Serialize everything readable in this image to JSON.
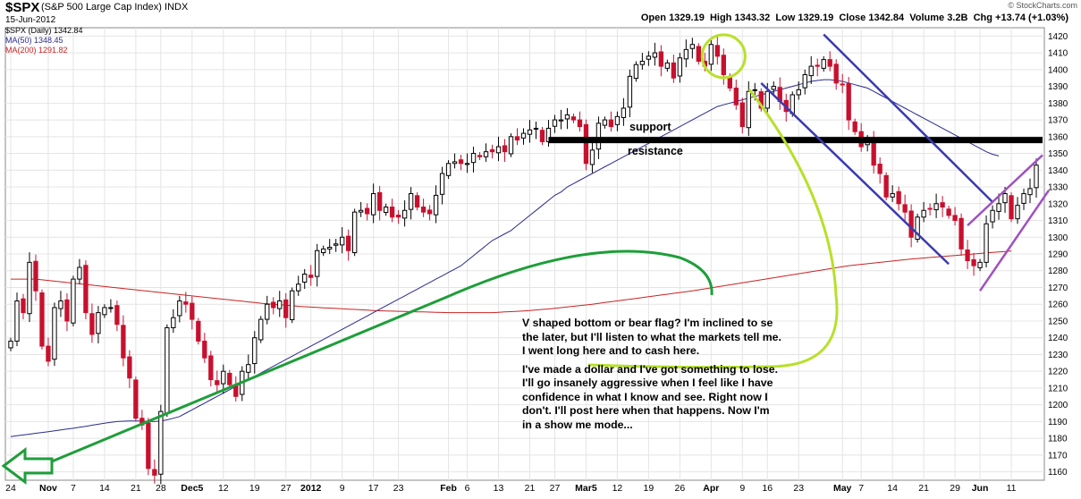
{
  "header": {
    "ticker": "$SPX",
    "name": "(S&P 500 Large Cap Index)",
    "exchange": "INDX",
    "date": "15-Jun-2012",
    "watermark": "© StockCharts.com",
    "ohlc": {
      "open_label": "Open",
      "open": "1329.19",
      "high_label": "High",
      "high": "1343.32",
      "low_label": "Low",
      "low": "1329.19",
      "close_label": "Close",
      "close": "1342.84",
      "volume_label": "Volume",
      "volume": "3.2B",
      "chg_label": "Chg",
      "chg": "+13.74 (+1.03%)"
    }
  },
  "legend": {
    "spx": "$SPX (Daily) 1342.84",
    "ma50": "MA(50) 1348.45",
    "ma200": "MA(200) 1291.82"
  },
  "annotations": {
    "support": "support",
    "resistance": "resistance",
    "text1": "V shaped bottom or bear flag? I'm inclined to se the later, but I'll listen to what the markets tell me. I went long here and to cash here.",
    "text2": "I've made a dollar and I've got something to lose.  I'll go insanely aggressive when I feel like I have confidence in what I know and see. Right now I don't. I'll post here when that happens. Now I'm in a show me mode..."
  },
  "chart_data": {
    "type": "candlestick",
    "ylim": [
      1155,
      1425
    ],
    "yticks": [
      1160,
      1170,
      1180,
      1190,
      1200,
      1210,
      1220,
      1230,
      1240,
      1250,
      1260,
      1270,
      1280,
      1290,
      1300,
      1310,
      1320,
      1330,
      1340,
      1350,
      1360,
      1370,
      1380,
      1390,
      1400,
      1410,
      1420
    ],
    "xticks": [
      {
        "label": "24",
        "i": 0
      },
      {
        "label": "Nov",
        "i": 6
      },
      {
        "label": "7",
        "i": 10
      },
      {
        "label": "14",
        "i": 15
      },
      {
        "label": "21",
        "i": 20
      },
      {
        "label": "28",
        "i": 24
      },
      {
        "label": "Dec5",
        "i": 29
      },
      {
        "label": "12",
        "i": 34
      },
      {
        "label": "19",
        "i": 39
      },
      {
        "label": "27",
        "i": 44
      },
      {
        "label": "2012",
        "i": 48
      },
      {
        "label": "9",
        "i": 53
      },
      {
        "label": "17",
        "i": 58
      },
      {
        "label": "23",
        "i": 62
      },
      {
        "label": "Feb",
        "i": 70
      },
      {
        "label": "6",
        "i": 73
      },
      {
        "label": "13",
        "i": 78
      },
      {
        "label": "21",
        "i": 83
      },
      {
        "label": "27",
        "i": 87
      },
      {
        "label": "Mar5",
        "i": 92
      },
      {
        "label": "12",
        "i": 97
      },
      {
        "label": "19",
        "i": 102
      },
      {
        "label": "26",
        "i": 107
      },
      {
        "label": "Apr",
        "i": 112
      },
      {
        "label": "9",
        "i": 117
      },
      {
        "label": "16",
        "i": 121
      },
      {
        "label": "23",
        "i": 126
      },
      {
        "label": "May",
        "i": 133
      },
      {
        "label": "7",
        "i": 136
      },
      {
        "label": "14",
        "i": 141
      },
      {
        "label": "21",
        "i": 146
      },
      {
        "label": "29",
        "i": 151
      },
      {
        "label": "Jun",
        "i": 155
      },
      {
        "label": "11",
        "i": 160
      }
    ],
    "closes": [
      1238,
      1262,
      1255,
      1285,
      1268,
      1235,
      1226,
      1258,
      1262,
      1250,
      1275,
      1282,
      1255,
      1242,
      1255,
      1258,
      1258,
      1248,
      1228,
      1216,
      1192,
      1188,
      1162,
      1158,
      1196,
      1246,
      1252,
      1262,
      1260,
      1251,
      1238,
      1228,
      1215,
      1212,
      1220,
      1212,
      1205,
      1220,
      1224,
      1240,
      1251,
      1260,
      1258,
      1262,
      1252,
      1268,
      1272,
      1278,
      1276,
      1292,
      1293,
      1294,
      1296,
      1300,
      1292,
      1315,
      1316,
      1314,
      1326,
      1316,
      1318,
      1312,
      1312,
      1316,
      1326,
      1318,
      1315,
      1314,
      1325,
      1338,
      1344,
      1345,
      1344,
      1344,
      1350,
      1348,
      1351,
      1351,
      1354,
      1351,
      1360,
      1358,
      1362,
      1364,
      1365,
      1357,
      1365,
      1370,
      1370,
      1373,
      1370,
      1366,
      1344,
      1352,
      1368,
      1370,
      1366,
      1372,
      1377,
      1396,
      1403,
      1405,
      1408,
      1410,
      1402,
      1404,
      1395,
      1407,
      1412,
      1415,
      1405,
      1402,
      1415,
      1408,
      1397,
      1389,
      1379,
      1366,
      1387,
      1388,
      1377,
      1387,
      1390,
      1381,
      1375,
      1385,
      1388,
      1397,
      1402,
      1402,
      1406,
      1402,
      1392,
      1391,
      1370,
      1363,
      1354,
      1358,
      1343,
      1338,
      1324,
      1326,
      1320,
      1315,
      1300,
      1312,
      1316,
      1317,
      1320,
      1318,
      1313,
      1310,
      1293,
      1286,
      1283,
      1285,
      1308,
      1316,
      1320,
      1326,
      1311,
      1319,
      1326,
      1329,
      1343
    ],
    "ma50": [
      1181,
      1181.5,
      1182,
      1182.5,
      1183,
      1183.5,
      1184,
      1184.5,
      1185,
      1185.5,
      1186,
      1186.6,
      1187.2,
      1187.8,
      1188.4,
      1189,
      1189.5,
      1190,
      1190.2,
      1190.4,
      1190.4,
      1190.3,
      1190.1,
      1190,
      1190.3,
      1191,
      1192,
      1193,
      1195,
      1197,
      1199,
      1201,
      1203,
      1205,
      1207,
      1209,
      1211,
      1213,
      1215,
      1217,
      1219,
      1221,
      1223,
      1225,
      1227,
      1229,
      1231,
      1233,
      1235,
      1237,
      1239,
      1241,
      1243,
      1245,
      1247,
      1249,
      1251,
      1253,
      1255,
      1257,
      1259,
      1261,
      1263,
      1265,
      1267,
      1269,
      1271,
      1273,
      1275,
      1277,
      1279,
      1281,
      1283,
      1286,
      1289,
      1292,
      1295,
      1298,
      1300,
      1302,
      1304,
      1307,
      1310,
      1313,
      1316,
      1319,
      1322,
      1325,
      1327,
      1330,
      1332,
      1334,
      1336,
      1338,
      1340,
      1342,
      1344,
      1346,
      1348,
      1350,
      1352,
      1354,
      1356,
      1358,
      1360,
      1362,
      1364,
      1366,
      1368,
      1370,
      1372,
      1374,
      1376,
      1378,
      1379,
      1380,
      1381,
      1382,
      1383,
      1384,
      1385,
      1386,
      1387,
      1388,
      1389,
      1390,
      1391,
      1392,
      1393,
      1393.5,
      1394,
      1394,
      1393.5,
      1393,
      1392,
      1391,
      1390,
      1389,
      1387,
      1385,
      1383,
      1381,
      1379,
      1377,
      1375,
      1373,
      1371,
      1369,
      1367,
      1365,
      1363,
      1361,
      1359,
      1357,
      1355,
      1353,
      1351,
      1349.5,
      1348.5
    ],
    "ma200": [
      1275,
      1275,
      1275,
      1275,
      1275,
      1274.6,
      1274.2,
      1273.8,
      1273.4,
      1273,
      1272.6,
      1272.2,
      1271.8,
      1271.4,
      1271,
      1270.6,
      1270.2,
      1269.8,
      1269.4,
      1269,
      1268.6,
      1268.2,
      1267.8,
      1267.4,
      1267,
      1266.6,
      1266.2,
      1265.8,
      1265.4,
      1265,
      1264.6,
      1264.2,
      1263.8,
      1263.4,
      1263,
      1262.6,
      1262.2,
      1261.8,
      1261.4,
      1261,
      1260.6,
      1260.3,
      1260,
      1259.7,
      1259.4,
      1259.1,
      1258.8,
      1258.5,
      1258.3,
      1258.1,
      1257.9,
      1257.7,
      1257.5,
      1257.3,
      1257.1,
      1256.9,
      1256.7,
      1256.5,
      1256.3,
      1256.1,
      1256,
      1255.9,
      1255.8,
      1255.7,
      1255.6,
      1255.5,
      1255.4,
      1255.3,
      1255.2,
      1255.1,
      1255,
      1255,
      1255,
      1255,
      1255,
      1255,
      1255,
      1255,
      1255.2,
      1255.4,
      1255.6,
      1255.8,
      1256,
      1256.3,
      1256.6,
      1256.9,
      1257.2,
      1257.6,
      1258,
      1258.4,
      1258.8,
      1259.2,
      1259.6,
      1260,
      1260.5,
      1261,
      1261.5,
      1262,
      1262.5,
      1263,
      1263.5,
      1264,
      1264.5,
      1265,
      1265.5,
      1266,
      1266.5,
      1267,
      1267.5,
      1268,
      1268.6,
      1269.2,
      1269.8,
      1270.4,
      1271,
      1271.6,
      1272.2,
      1272.8,
      1273.4,
      1274,
      1274.6,
      1275.2,
      1275.8,
      1276.4,
      1277,
      1277.6,
      1278.2,
      1278.8,
      1279.4,
      1280,
      1280.6,
      1281.2,
      1281.8,
      1282.4,
      1283,
      1283.4,
      1283.8,
      1284.2,
      1284.6,
      1285,
      1285.4,
      1285.8,
      1286.2,
      1286.6,
      1287,
      1287.3,
      1287.6,
      1287.9,
      1288.2,
      1288.5,
      1288.8,
      1289.1,
      1289.4,
      1289.7,
      1290,
      1290.3,
      1290.6,
      1290.9,
      1291.2,
      1291.5,
      1291.8
    ],
    "overlay_colors": {
      "ma50": "#2a2a8f",
      "ma200": "#cc2222",
      "up": "#000000",
      "down": "#c8102e",
      "support": "#000000",
      "channel": "#3a3ab0",
      "flag": "#a050c0",
      "green": "#1e9e3a",
      "lime": "#b8e02a"
    }
  }
}
